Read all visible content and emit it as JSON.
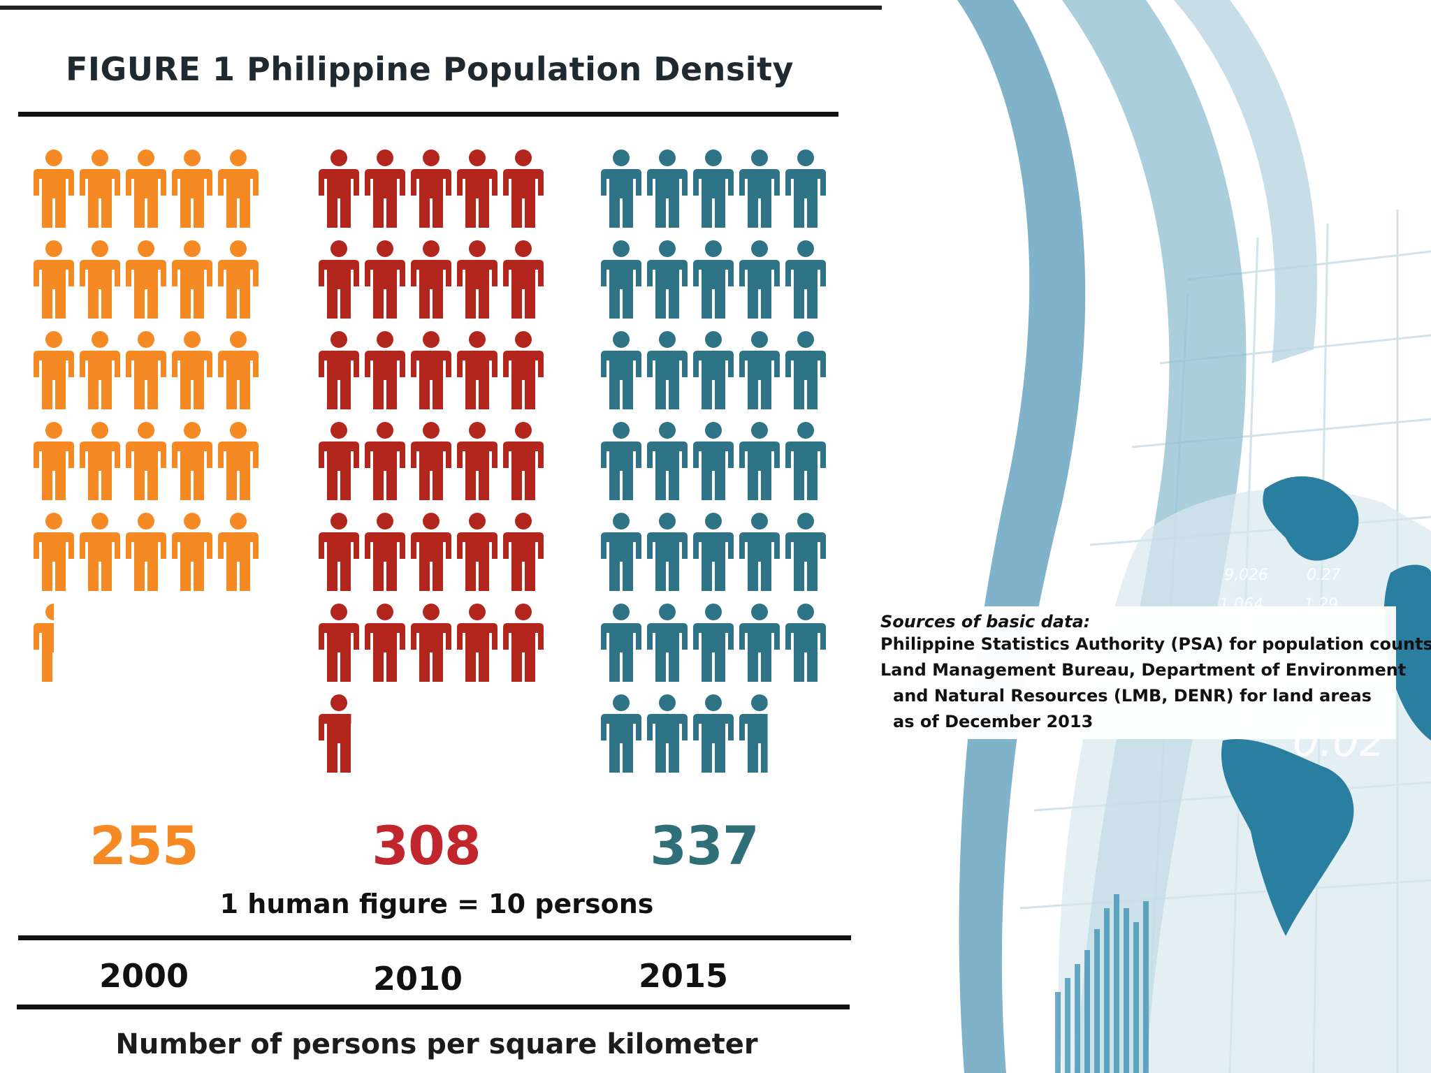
{
  "figure": {
    "title": "FIGURE 1  Philippine Population Density",
    "note": "1 human figure = 10 persons",
    "unit_label": "Number of persons per square kilometer"
  },
  "chart_data": {
    "type": "pictograph",
    "title": "FIGURE 1  Philippine Population Density",
    "categories": [
      "2000",
      "2010",
      "2015"
    ],
    "values": [
      255,
      308,
      337
    ],
    "value_labels": [
      "255",
      "308",
      "337"
    ],
    "unit": "Number of persons per square kilometer",
    "icon_value": 10,
    "icon_label": "1 human figure = 10 persons",
    "colors": [
      "#F58A24",
      "#B3261E",
      "#2E7386"
    ]
  },
  "sources": {
    "heading": "Sources of basic data",
    "lines": [
      "Philippine Statistics Authority (PSA) for population counts",
      "Land Management Bureau, Department of Environment",
      "and Natural Resources (LMB, DENR) for land areas",
      "as of December 2013"
    ]
  },
  "background": {
    "decorative_numbers": [
      "9,026",
      "0.27",
      "1,064",
      "1.29",
      "0.02"
    ],
    "accent": "#5E9DB8"
  }
}
